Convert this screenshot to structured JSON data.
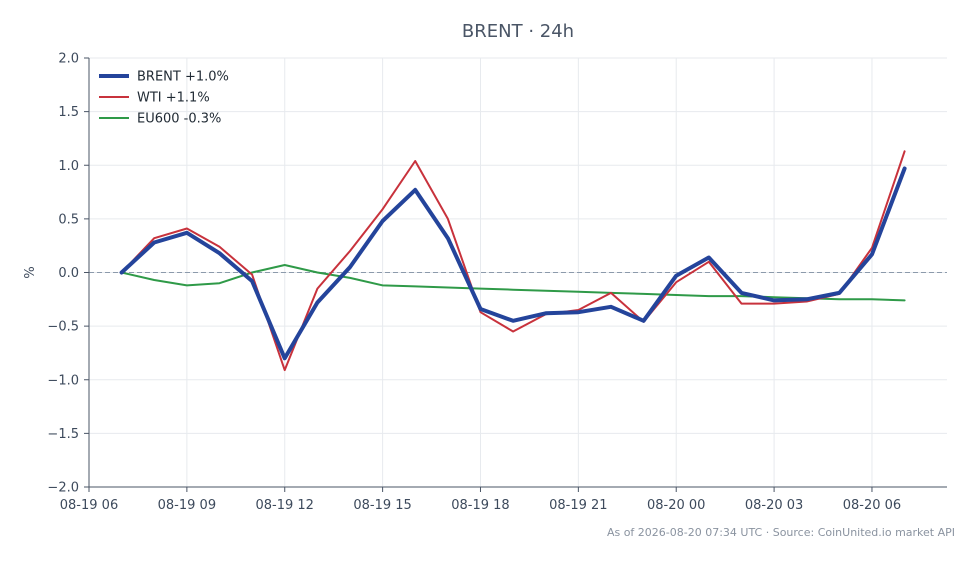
{
  "chart_data": {
    "type": "line",
    "title": "BRENT · 24h",
    "ylabel": "%",
    "xlabel": "",
    "ylim": [
      -2.0,
      2.0
    ],
    "y_ticks": [
      2.0,
      1.5,
      1.0,
      0.5,
      0.0,
      -0.5,
      -1.0,
      -1.5,
      -2.0
    ],
    "y_tick_labels": [
      "2.0",
      "1.5",
      "1.0",
      "0.5",
      "0.0",
      "−0.5",
      "−1.0",
      "−1.5",
      "−2.0"
    ],
    "x_ticks": [
      6,
      9,
      12,
      15,
      18,
      21,
      24,
      27,
      30
    ],
    "x_tick_labels": [
      "08-19 06",
      "08-19 09",
      "08-19 12",
      "08-19 15",
      "08-19 18",
      "08-19 21",
      "08-20 00",
      "08-20 03",
      "08-20 06"
    ],
    "xlim": [
      6,
      32.3
    ],
    "x": [
      7,
      8,
      9,
      10,
      11,
      12,
      13,
      14,
      15,
      16,
      17,
      18,
      19,
      20,
      21,
      22,
      23,
      24,
      25,
      26,
      27,
      28,
      29,
      30,
      31
    ],
    "series": [
      {
        "name": "BRENT +1.0%",
        "color": "#24449b",
        "width": 4,
        "values": [
          0.0,
          0.28,
          0.37,
          0.18,
          -0.08,
          -0.8,
          -0.28,
          0.05,
          0.48,
          0.77,
          0.32,
          -0.34,
          -0.45,
          -0.38,
          -0.37,
          -0.32,
          -0.45,
          -0.03,
          0.14,
          -0.19,
          -0.26,
          -0.25,
          -0.19,
          0.17,
          0.97
        ]
      },
      {
        "name": "WTI +1.1%",
        "color": "#c8323c",
        "width": 2,
        "values": [
          0.0,
          0.32,
          0.41,
          0.24,
          -0.02,
          -0.91,
          -0.15,
          0.2,
          0.59,
          1.04,
          0.5,
          -0.37,
          -0.55,
          -0.39,
          -0.35,
          -0.19,
          -0.46,
          -0.09,
          0.1,
          -0.29,
          -0.29,
          -0.27,
          -0.2,
          0.23,
          1.13
        ]
      },
      {
        "name": "EU600 -0.3%",
        "color": "#2f9a48",
        "width": 2,
        "values": [
          0.0,
          -0.07,
          -0.12,
          -0.1,
          0.0,
          0.07,
          0.0,
          -0.05,
          -0.12,
          -0.13,
          -0.14,
          -0.15,
          -0.16,
          -0.17,
          -0.18,
          -0.19,
          -0.2,
          -0.21,
          -0.22,
          -0.22,
          -0.23,
          -0.24,
          -0.25,
          -0.25,
          -0.26
        ]
      }
    ],
    "reference_line": {
      "y": 0.0,
      "style": "dashed"
    },
    "grid": true,
    "legend_position": "top-left"
  },
  "footer": "As of 2026-08-20 07:34 UTC · Source: CoinUnited.io market API"
}
